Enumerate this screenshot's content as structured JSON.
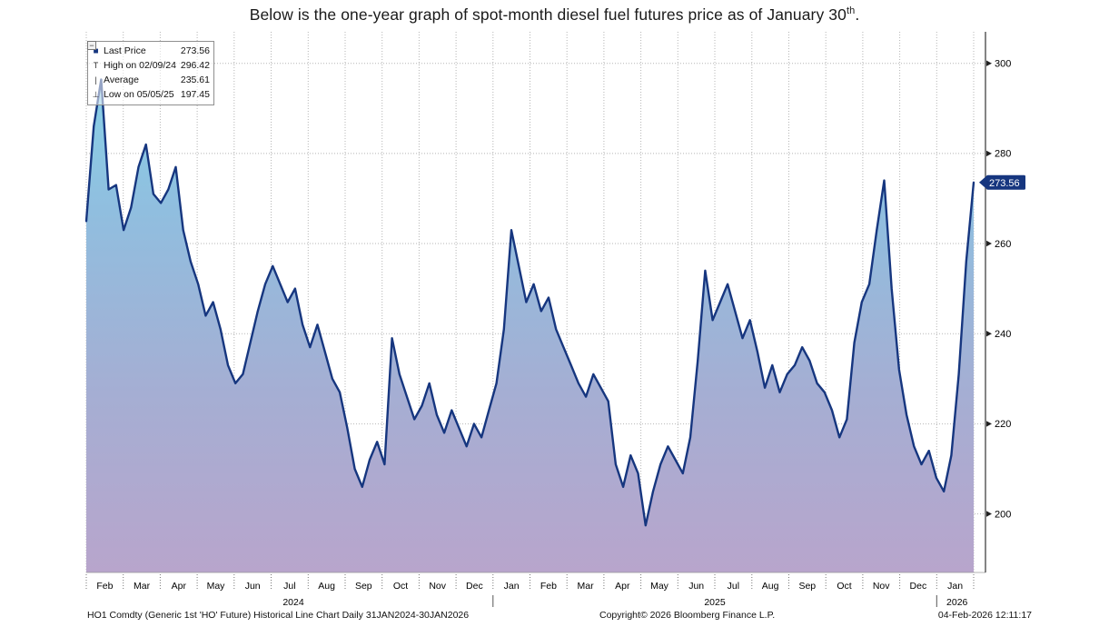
{
  "title": {
    "prefix": "Below is the one-year graph of spot-month diesel fuel futures price as of January 30",
    "sup": "th",
    "suffix": "."
  },
  "legend": {
    "collapse_glyph": "−",
    "items": [
      {
        "icon": "last-price-swatch",
        "glyph": "■",
        "label": "Last Price",
        "value": "273.56"
      },
      {
        "icon": "high-marker",
        "glyph": "T",
        "label": "High on 02/09/24",
        "value": "296.42"
      },
      {
        "icon": "average-marker",
        "glyph": "|",
        "label": "Average",
        "value": "235.61"
      },
      {
        "icon": "low-marker",
        "glyph": "⊥",
        "label": "Low on 05/05/25",
        "value": "197.45"
      }
    ]
  },
  "footer": {
    "left": "HO1 Comdty (Generic 1st 'HO' Future) Historical Line Chart Daily 31JAN2024-30JAN2026",
    "center": "Copyright© 2026 Bloomberg Finance L.P.",
    "right": "04-Feb-2026 12:11:17"
  },
  "chart_data": {
    "type": "area",
    "title": "",
    "xlabel": "",
    "ylabel": "",
    "ylim": [
      187,
      307
    ],
    "y_ticks": [
      200,
      220,
      240,
      260,
      280,
      300
    ],
    "grid": true,
    "legend_position": "top-left",
    "y_axis_side": "right",
    "last_price": 273.56,
    "high": {
      "date": "02/09/24",
      "value": 296.42
    },
    "average": 235.61,
    "low": {
      "date": "05/05/25",
      "value": 197.45
    },
    "line_color": "#16367f",
    "fill_gradient": [
      "#86d7e9",
      "#90bedf",
      "#a5aed3",
      "#b8a5cc"
    ],
    "x_months": [
      "Feb",
      "Mar",
      "Apr",
      "May",
      "Jun",
      "Jul",
      "Aug",
      "Sep",
      "Oct",
      "Nov",
      "Dec",
      "Jan",
      "Feb",
      "Mar",
      "Apr",
      "May",
      "Jun",
      "Jul",
      "Aug",
      "Sep",
      "Oct",
      "Nov",
      "Dec",
      "Jan"
    ],
    "year_labels": [
      {
        "label": "2024",
        "month_pos": 5.6
      },
      {
        "label": "2025",
        "month_pos": 17.0
      },
      {
        "label": "2026",
        "month_pos": 23.55
      }
    ],
    "year_separators_month_pos": [
      11,
      23
    ],
    "series": [
      {
        "name": "HO1 Comdty - Last Price",
        "values": [
          265,
          286,
          296.42,
          272,
          273,
          263,
          268,
          277,
          282,
          271,
          269,
          272,
          277,
          263,
          256,
          251,
          244,
          247,
          241,
          233,
          229,
          231,
          238,
          245,
          251,
          255,
          251,
          247,
          250,
          242,
          237,
          242,
          236,
          230,
          227,
          219,
          210,
          206,
          212,
          216,
          211,
          239,
          231,
          226,
          221,
          224,
          229,
          222,
          218,
          223,
          219,
          215,
          220,
          217,
          223,
          229,
          241,
          263,
          255,
          247,
          251,
          245,
          248,
          241,
          237,
          233,
          229,
          226,
          231,
          228,
          225,
          211,
          206,
          213,
          209,
          197.45,
          205,
          211,
          215,
          212,
          209,
          217,
          234,
          254,
          243,
          247,
          251,
          245,
          239,
          243,
          236,
          228,
          233,
          227,
          231,
          233,
          237,
          234,
          229,
          227,
          223,
          217,
          221,
          238,
          247,
          251,
          263,
          274,
          250,
          232,
          222,
          215,
          211,
          214,
          208,
          205,
          213,
          231,
          256,
          273.56
        ]
      }
    ]
  }
}
